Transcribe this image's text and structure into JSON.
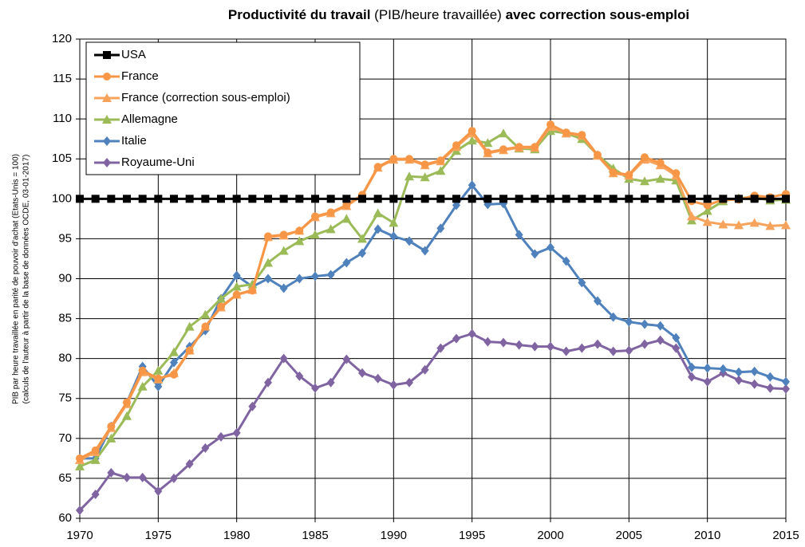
{
  "chart_data": {
    "type": "line",
    "title": [
      "Productivité du travail",
      " (PIB/heure travaillée) ",
      "avec correction sous-emploi"
    ],
    "y_label": [
      "PIB par heure travaillée en parité de pouvoir d'achat (Etats-Unis = 100)",
      "(calculs de l'auteur à partir de la base de données OCDE, 03-01-2017)"
    ],
    "x": [
      1970,
      1971,
      1972,
      1973,
      1974,
      1975,
      1976,
      1977,
      1978,
      1979,
      1980,
      1981,
      1982,
      1983,
      1984,
      1985,
      1986,
      1987,
      1988,
      1989,
      1990,
      1991,
      1992,
      1993,
      1994,
      1995,
      1996,
      1997,
      1998,
      1999,
      2000,
      2001,
      2002,
      2003,
      2004,
      2005,
      2006,
      2007,
      2008,
      2009,
      2010,
      2011,
      2012,
      2013,
      2014,
      2015
    ],
    "xlim": [
      1970,
      2015
    ],
    "xticks": [
      1970,
      1975,
      1980,
      1985,
      1990,
      1995,
      2000,
      2005,
      2010,
      2015
    ],
    "ylim": [
      60,
      120
    ],
    "yticks": [
      60,
      65,
      70,
      75,
      80,
      85,
      90,
      95,
      100,
      105,
      110,
      115,
      120
    ],
    "grid": true,
    "legend": "top-left",
    "series": [
      {
        "name": "USA",
        "color": "#000000",
        "marker": "square",
        "values": [
          100,
          100,
          100,
          100,
          100,
          100,
          100,
          100,
          100,
          100,
          100,
          100,
          100,
          100,
          100,
          100,
          100,
          100,
          100,
          100,
          100,
          100,
          100,
          100,
          100,
          100,
          100,
          100,
          100,
          100,
          100,
          100,
          100,
          100,
          100,
          100,
          100,
          100,
          100,
          100,
          100,
          100,
          100,
          100,
          100,
          100
        ]
      },
      {
        "name": "France",
        "color": "#f79646",
        "marker": "circle",
        "values": [
          67.5,
          68.5,
          71.5,
          74.5,
          78.5,
          77.5,
          78,
          81,
          84,
          86.5,
          88,
          88.5,
          95.3,
          95.5,
          96,
          97.8,
          98.3,
          99.2,
          100.5,
          104,
          105,
          105,
          104.3,
          104.8,
          106.7,
          108.5,
          105.8,
          106.2,
          106.5,
          106.5,
          109.3,
          108.3,
          108,
          105.5,
          103.3,
          103,
          105.2,
          104.5,
          103.2,
          99.7,
          99.2,
          99.9,
          99.9,
          100.4,
          100.2,
          100.6
        ]
      },
      {
        "name": "France (correction sous-emploi)",
        "color": "#f7a35c",
        "marker": "triangle",
        "values": [
          67.3,
          68.3,
          71.3,
          74.3,
          78.3,
          77.4,
          78.2,
          81,
          84,
          86.4,
          88,
          88.6,
          95.2,
          95.4,
          96,
          97.7,
          98.2,
          99.1,
          100.4,
          103.9,
          104.9,
          104.9,
          104.2,
          104.7,
          106.5,
          108.2,
          105.7,
          106.1,
          106.4,
          106.4,
          109,
          108.2,
          107.9,
          105.4,
          103.2,
          102.9,
          104.9,
          104.2,
          102.9,
          97.8,
          97.1,
          96.8,
          96.7,
          97,
          96.6,
          96.7
        ]
      },
      {
        "name": "Allemagne",
        "color": "#9bbb59",
        "marker": "triangle",
        "values": [
          66.5,
          67.3,
          70,
          72.8,
          76.5,
          78.5,
          80.8,
          84,
          85.5,
          87.5,
          89,
          89.3,
          92,
          93.5,
          94.7,
          95.5,
          96.2,
          97.5,
          95,
          98.2,
          97,
          102.8,
          102.7,
          103.5,
          106,
          107.3,
          107,
          108.2,
          106.3,
          106.2,
          108.5,
          108.2,
          107.5,
          105.5,
          103.8,
          102.5,
          102.2,
          102.5,
          102.3,
          97.3,
          98.5,
          99.7,
          100.1,
          100.2,
          99.8,
          99.9
        ]
      },
      {
        "name": "Italie",
        "color": "#4f81bd",
        "marker": "diamond",
        "values": [
          67.5,
          67.5,
          71.5,
          74.5,
          79,
          76.5,
          79.5,
          81.5,
          83.5,
          87.5,
          90.4,
          89,
          90,
          88.8,
          90,
          90.3,
          90.5,
          92,
          93.2,
          96.2,
          95.3,
          94.7,
          93.5,
          96.3,
          99.2,
          101.7,
          99.3,
          99.4,
          95.5,
          93.1,
          93.9,
          92.2,
          89.5,
          87.2,
          85.2,
          84.6,
          84.3,
          84.1,
          82.6,
          78.9,
          78.8,
          78.7,
          78.3,
          78.4,
          77.7,
          77.1
        ]
      },
      {
        "name": "Royaume-Uni",
        "color": "#8064a2",
        "marker": "diamond",
        "values": [
          61,
          63,
          65.7,
          65.1,
          65.1,
          63.4,
          65,
          66.8,
          68.8,
          70.2,
          70.7,
          74,
          77,
          80,
          77.8,
          76.3,
          77,
          79.9,
          78.2,
          77.5,
          76.7,
          77,
          78.6,
          81.3,
          82.5,
          83.1,
          82.1,
          82,
          81.7,
          81.5,
          81.5,
          80.9,
          81.3,
          81.8,
          80.9,
          81,
          81.8,
          82.3,
          81.3,
          77.7,
          77.1,
          78.2,
          77.3,
          76.8,
          76.3,
          76.2
        ]
      }
    ]
  }
}
